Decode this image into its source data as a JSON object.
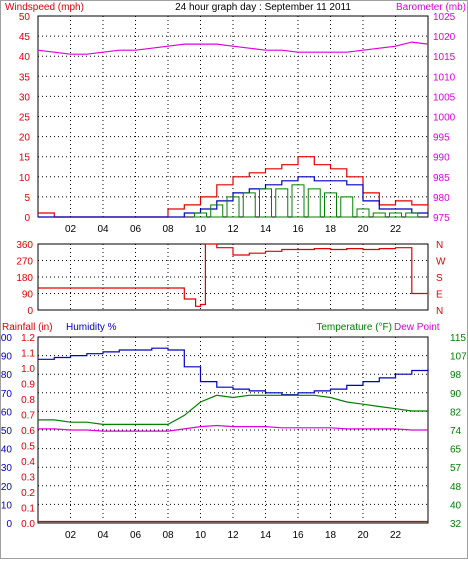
{
  "title": "24 hour graph day : September 11 2011",
  "x_tick_labels": [
    "02",
    "04",
    "06",
    "08",
    "10",
    "12",
    "14",
    "16",
    "18",
    "20",
    "22"
  ],
  "x_tick_hours": [
    2,
    4,
    6,
    8,
    10,
    12,
    14,
    16,
    18,
    20,
    22
  ],
  "colors": {
    "red": "#e00000",
    "blue": "#0000c0",
    "green": "#008000",
    "magenta": "#e000e0",
    "grid": "#000000",
    "frame": "#a0a0a0",
    "bg": "#ffffff"
  },
  "chart_data": [
    {
      "type": "line",
      "name": "wind-barometer",
      "y_left_label": "Windspeed (mph)",
      "y_right_label": "Barometer (mb)",
      "y_left_ticks": [
        "0",
        "5",
        "10",
        "15",
        "20",
        "25",
        "30",
        "35",
        "40",
        "45",
        "50"
      ],
      "y_right_ticks": [
        "975",
        "980",
        "985",
        "990",
        "995",
        "1000",
        "1005",
        "1010",
        "1015",
        "1020",
        "1025"
      ],
      "ylim_left": [
        0,
        50
      ],
      "ylim_right": [
        975,
        1025
      ],
      "x_hours": [
        0,
        1,
        2,
        3,
        4,
        5,
        6,
        7,
        8,
        9,
        10,
        11,
        12,
        13,
        14,
        15,
        16,
        17,
        18,
        19,
        20,
        21,
        22,
        23,
        24
      ],
      "series": [
        {
          "color": "red",
          "axis": "left",
          "style": "step",
          "values": [
            1,
            0,
            0,
            0,
            0,
            0,
            0,
            0,
            2,
            3,
            5,
            8,
            10,
            11,
            12,
            13,
            15,
            13,
            12,
            10,
            6,
            3,
            4,
            3,
            2
          ]
        },
        {
          "color": "blue",
          "axis": "left",
          "style": "step",
          "values": [
            0,
            0,
            0,
            0,
            0,
            0,
            0,
            0,
            0,
            1,
            2,
            4,
            6,
            7,
            8,
            9,
            10,
            9,
            9,
            8,
            4,
            2,
            2,
            1,
            1
          ]
        },
        {
          "color": "green",
          "axis": "left",
          "style": "bars",
          "values": [
            0,
            0,
            0,
            0,
            0,
            0,
            0,
            0,
            0,
            0,
            1,
            3,
            5,
            6,
            7,
            7,
            8,
            7,
            6,
            5,
            2,
            1,
            1,
            1,
            0
          ]
        },
        {
          "color": "magenta",
          "axis": "right",
          "style": "line",
          "values": [
            1016.5,
            1016,
            1015.5,
            1015.5,
            1016,
            1016.5,
            1016.5,
            1017,
            1017.5,
            1018,
            1018,
            1018,
            1017.5,
            1017,
            1016.5,
            1016.5,
            1016,
            1016,
            1016,
            1016,
            1016.5,
            1017,
            1017.5,
            1018.5,
            1018
          ]
        }
      ]
    },
    {
      "type": "line",
      "name": "wind-direction",
      "y_left_ticks": [
        "0",
        "90",
        "180",
        "270",
        "360"
      ],
      "y_right_ticks": [
        "N",
        "E",
        "S",
        "W",
        "N"
      ],
      "ylim": [
        0,
        360
      ],
      "x_hours": [
        0,
        8,
        9,
        9.7,
        10,
        10.3,
        11,
        12,
        13,
        14,
        15,
        16,
        17,
        18,
        19,
        20,
        21,
        22,
        23,
        24
      ],
      "series": [
        {
          "color": "red",
          "style": "step",
          "values": [
            120,
            120,
            60,
            20,
            30,
            360,
            340,
            300,
            310,
            320,
            330,
            330,
            335,
            330,
            335,
            330,
            335,
            340,
            90,
            80
          ]
        }
      ]
    },
    {
      "type": "line",
      "name": "rain-humidity-temperature",
      "y_label_rain": "Rainfall (in)",
      "y_label_humidity": "Humidity %",
      "y_label_temperature": "Temperature (°F)",
      "y_label_dewpoint": "Dew Point",
      "y_rain_ticks": [
        "0.0",
        "0.1",
        "0.2",
        "0.3",
        "0.4",
        "0.5",
        "0.6",
        "0.7",
        "0.8",
        "0.9",
        "1.0",
        "1.1",
        "1.2"
      ],
      "y_humidity_ticks": [
        "0",
        "10",
        "20",
        "30",
        "40",
        "50",
        "60",
        "70",
        "80",
        "90",
        "100"
      ],
      "y_temperature_ticks": [
        "32",
        "40",
        "48",
        "57",
        "65",
        "74",
        "82",
        "90",
        "98",
        "107",
        "115"
      ],
      "ylim_humidity": [
        0,
        100
      ],
      "ylim_temperature": [
        32,
        115
      ],
      "ylim_rain": [
        0,
        1.2
      ],
      "x_hours": [
        0,
        1,
        2,
        3,
        4,
        5,
        6,
        7,
        8,
        9,
        10,
        11,
        12,
        13,
        14,
        15,
        16,
        17,
        18,
        19,
        20,
        21,
        22,
        23,
        24
      ],
      "series": [
        {
          "color": "blue",
          "axis": "humidity",
          "style": "step",
          "values": [
            88,
            89,
            90,
            91,
            92,
            93,
            93,
            94,
            93,
            84,
            76,
            73,
            72,
            71,
            70,
            69,
            70,
            71,
            72,
            74,
            76,
            78,
            80,
            82,
            83
          ]
        },
        {
          "color": "green",
          "axis": "temperature",
          "style": "line",
          "values": [
            78,
            78,
            77,
            77,
            76,
            76,
            76,
            76,
            76,
            80,
            86,
            89,
            88,
            89,
            89,
            89,
            89,
            89,
            88,
            86,
            85,
            84,
            83,
            82,
            82
          ]
        },
        {
          "color": "magenta",
          "axis": "temperature",
          "style": "line",
          "values": [
            74,
            74,
            73.5,
            73.5,
            73,
            73,
            73,
            73,
            73,
            74,
            75,
            75.5,
            75,
            75,
            75,
            74.5,
            74.5,
            74.5,
            74.5,
            74,
            74,
            74,
            74,
            73.5,
            73.5
          ]
        },
        {
          "color": "red",
          "axis": "rain",
          "style": "line",
          "values": [
            0.01,
            0.01,
            0.01,
            0.01,
            0.01,
            0.01,
            0.01,
            0.01,
            0.01,
            0.01,
            0.01,
            0.01,
            0.01,
            0.01,
            0.01,
            0.01,
            0.01,
            0.01,
            0.01,
            0.01,
            0.01,
            0.01,
            0.01,
            0.01,
            0.01
          ]
        }
      ]
    }
  ]
}
